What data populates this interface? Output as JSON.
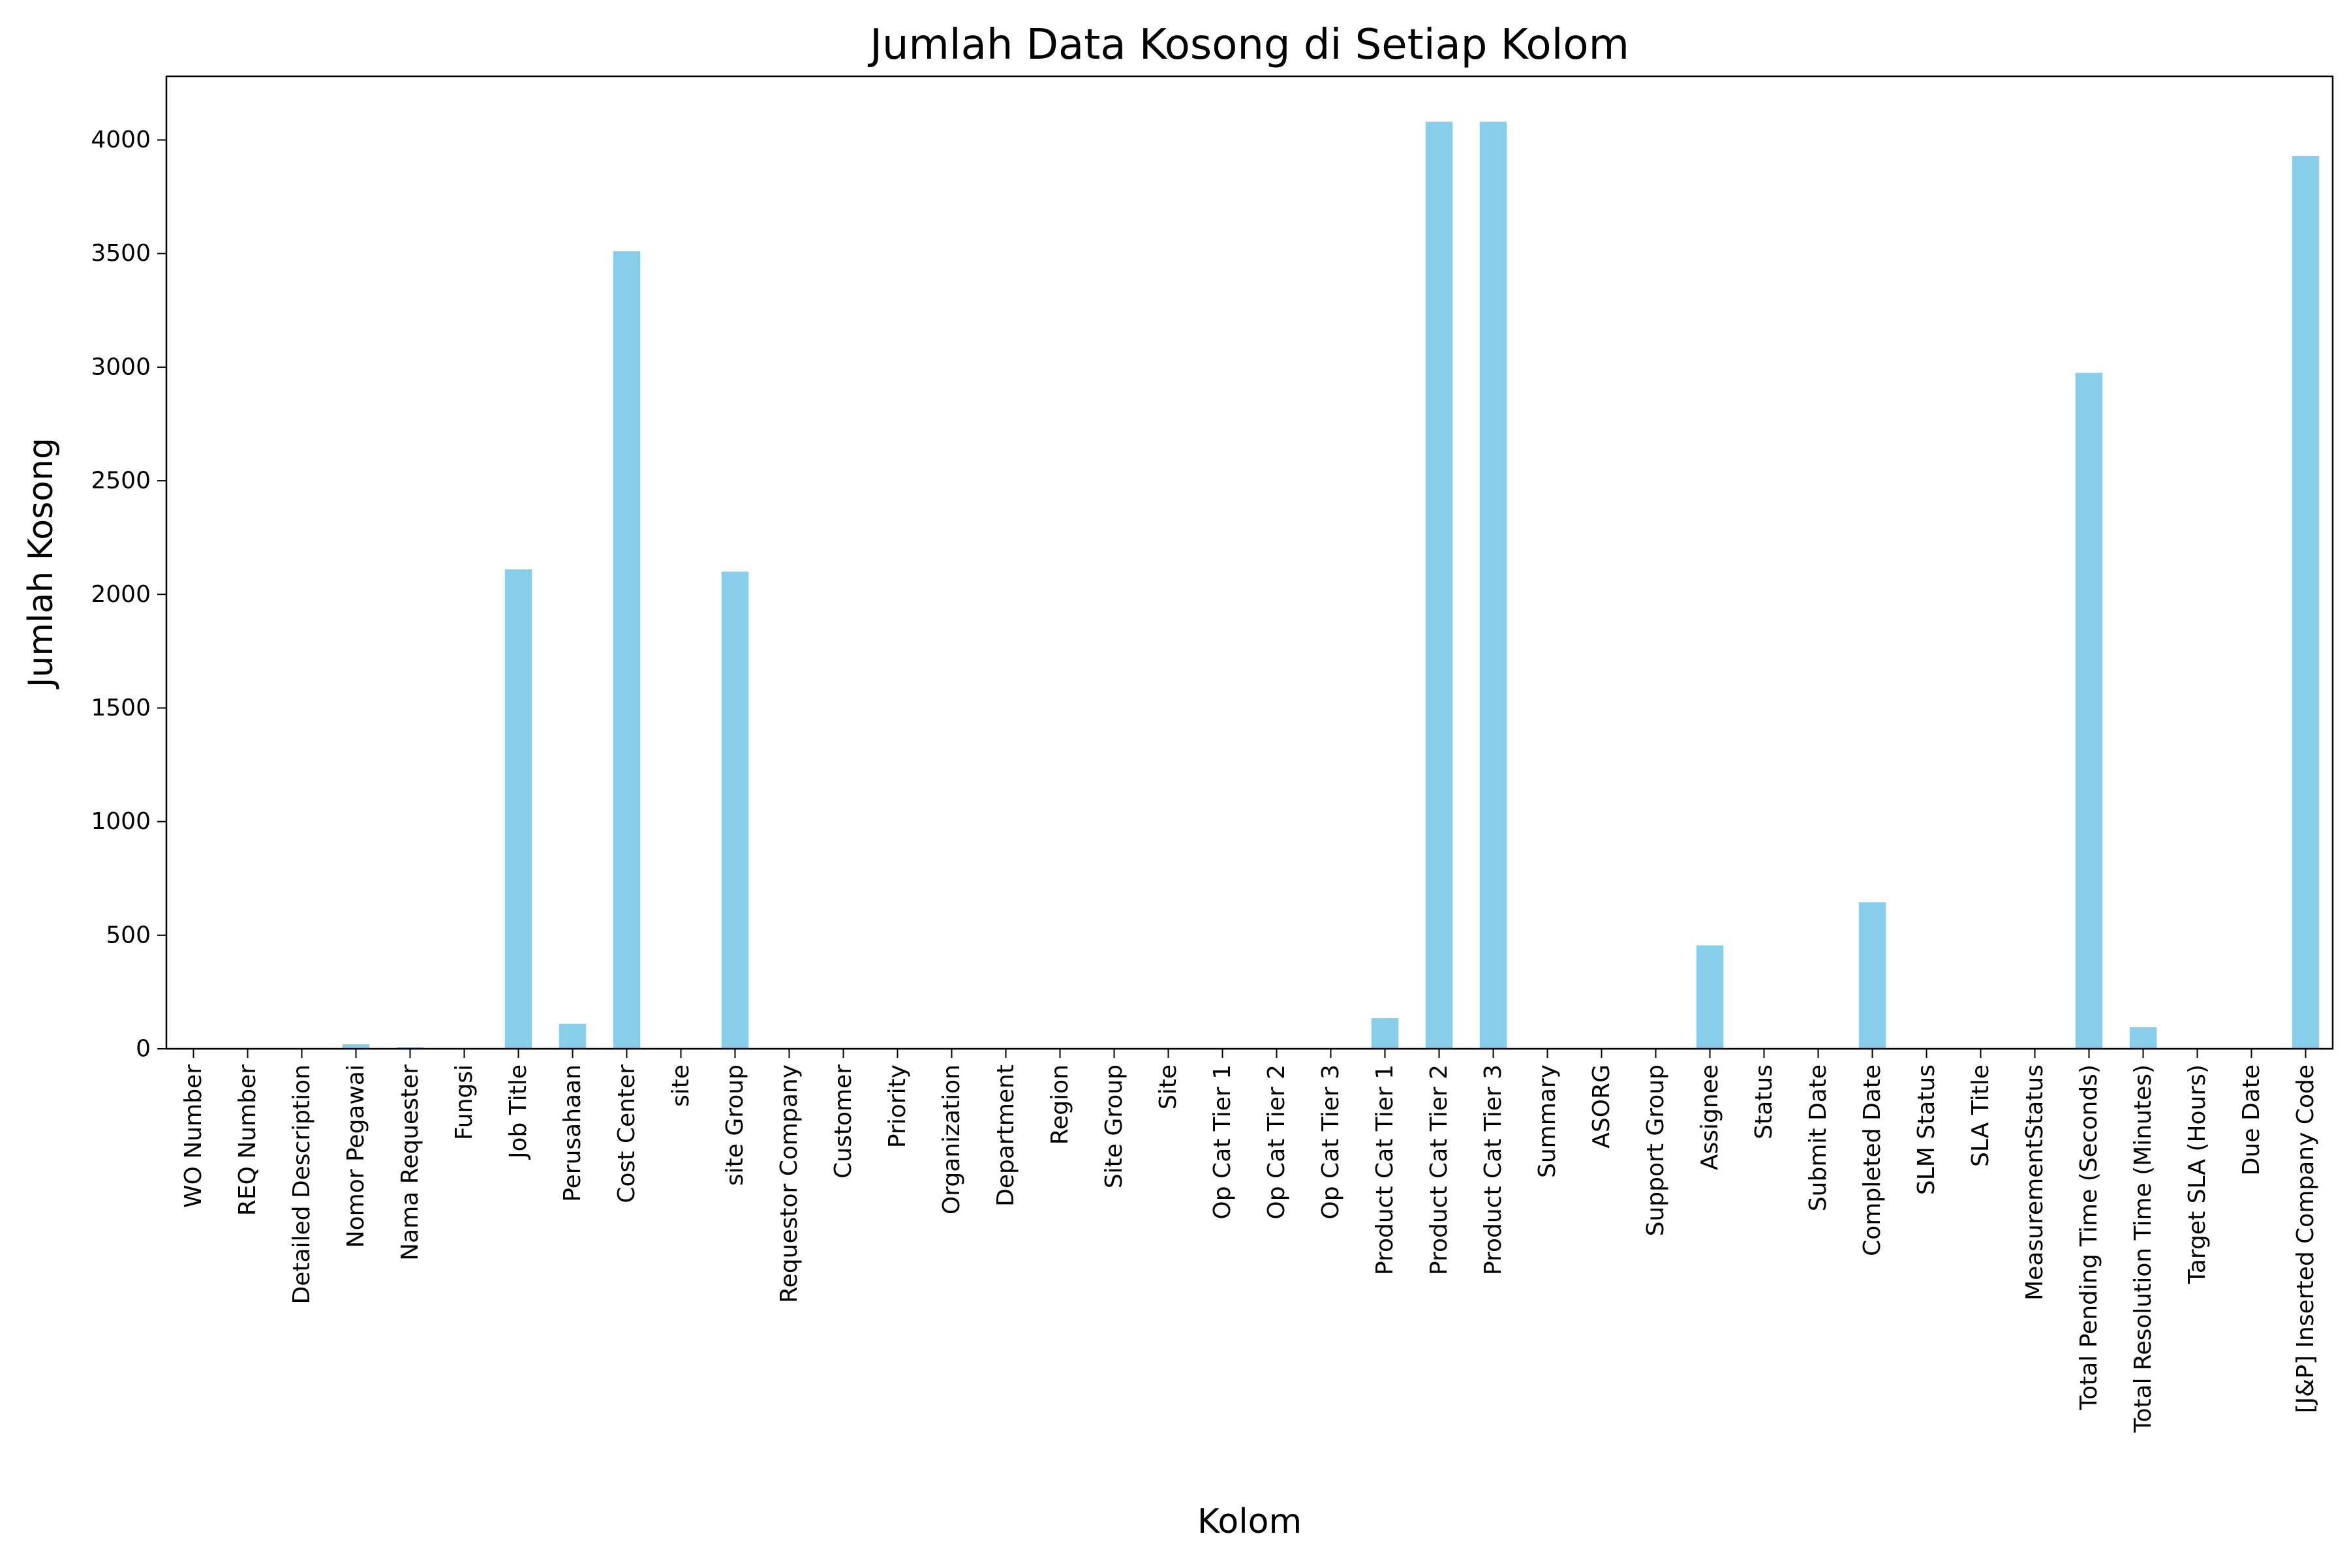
{
  "chart_data": {
    "type": "bar",
    "title": "Jumlah Data Kosong di Setiap Kolom",
    "xlabel": "Kolom",
    "ylabel": "Jumlah Kosong",
    "ylim": [
      0,
      4280
    ],
    "yticks": [
      0,
      500,
      1000,
      1500,
      2000,
      2500,
      3000,
      3500,
      4000
    ],
    "ytick_labels": [
      "0",
      "500",
      "1000",
      "1500",
      "2000",
      "2500",
      "3000",
      "3500",
      "4000"
    ],
    "grid": false,
    "bar_color": "#87CEEB",
    "categories": [
      "WO Number",
      "REQ Number",
      "Detailed Description",
      "Nomor Pegawai",
      "Nama Requester",
      "Fungsi",
      "Job Title",
      "Perusahaan",
      "Cost Center",
      "site",
      "site Group",
      "Requestor Company",
      "Customer",
      "Priority",
      "Organization",
      "Department",
      "Region",
      "Site Group",
      "Site",
      "Op Cat Tier 1",
      "Op Cat Tier 2",
      "Op Cat Tier 3",
      "Product Cat Tier 1",
      "Product Cat Tier 2",
      "Product Cat Tier 3",
      "Summary",
      "ASORG",
      "Support Group",
      "Assignee",
      "Status",
      "Submit Date",
      "Completed Date",
      "SLM Status",
      "SLA Title",
      "MeasurementStatus",
      "Total Pending Time (Seconds)",
      "Total Resolution Time (Minutes)",
      "Target SLA (Hours)",
      "Due Date",
      "[J&P] Inserted Company Code"
    ],
    "values": [
      0,
      0,
      0,
      20,
      8,
      0,
      2110,
      110,
      3510,
      0,
      2100,
      0,
      0,
      0,
      0,
      0,
      0,
      0,
      0,
      0,
      0,
      0,
      135,
      4080,
      4080,
      0,
      0,
      0,
      455,
      0,
      0,
      645,
      0,
      0,
      0,
      2975,
      95,
      0,
      0,
      3930
    ]
  }
}
